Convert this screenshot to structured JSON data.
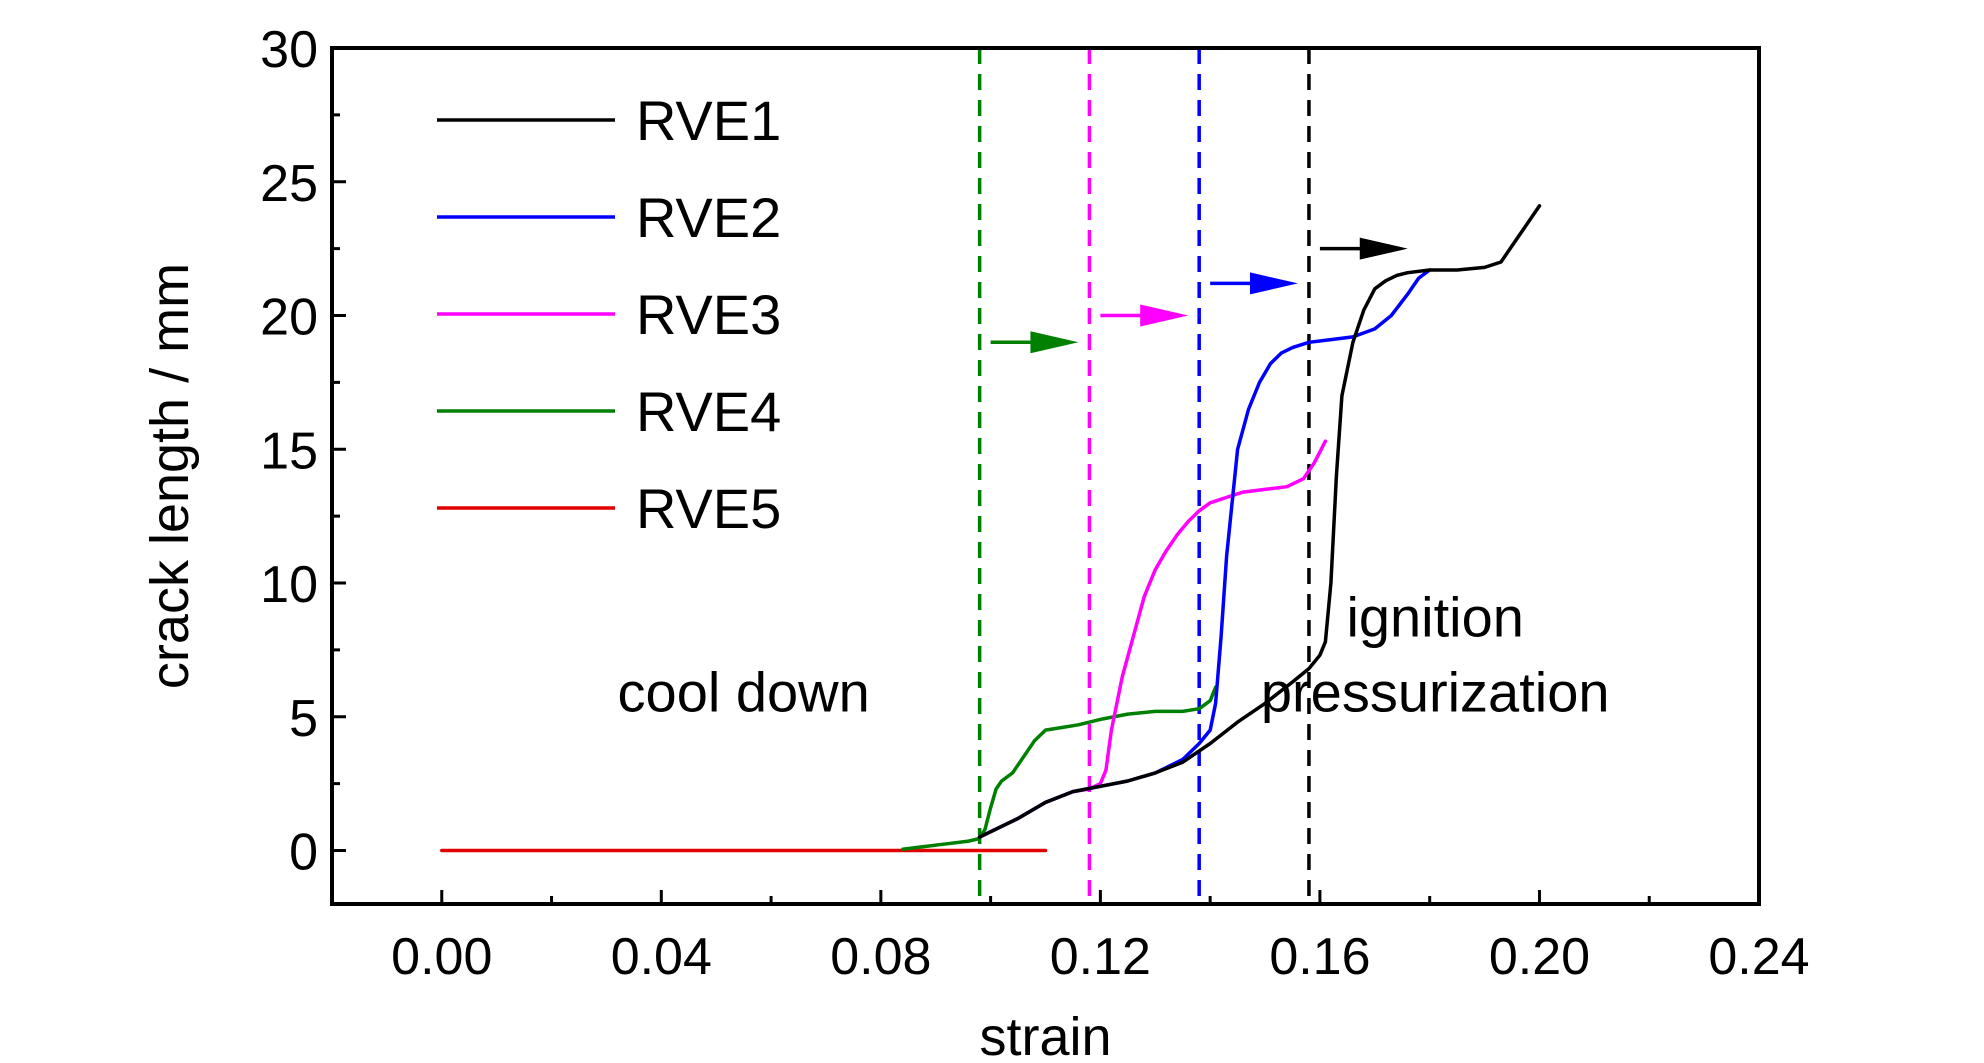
{
  "chart_data": {
    "type": "line",
    "title": "",
    "xlabel": "strain",
    "ylabel": "crack length / mm",
    "xlim": [
      -0.02,
      0.24
    ],
    "ylim": [
      -2,
      30
    ],
    "xticks": [
      0.0,
      0.04,
      0.08,
      0.12,
      0.16,
      0.2,
      0.24
    ],
    "xtick_labels": [
      "0.00",
      "0.04",
      "0.08",
      "0.12",
      "0.16",
      "0.20",
      "0.24"
    ],
    "yticks": [
      0,
      5,
      10,
      15,
      20,
      25,
      30
    ],
    "ytick_labels": [
      "0",
      "5",
      "10",
      "15",
      "20",
      "25",
      "30"
    ],
    "grid": false,
    "legend_position": "top-left",
    "series": [
      {
        "name": "RVE1",
        "color": "#000000",
        "x": [
          0.098,
          0.105,
          0.11,
          0.115,
          0.12,
          0.125,
          0.13,
          0.135,
          0.14,
          0.145,
          0.15,
          0.155,
          0.158,
          0.16,
          0.161,
          0.162,
          0.163,
          0.164,
          0.166,
          0.168,
          0.17,
          0.172,
          0.174,
          0.176,
          0.18,
          0.185,
          0.19,
          0.193,
          0.195,
          0.197,
          0.2
        ],
        "y": [
          0.5,
          1.2,
          1.8,
          2.2,
          2.4,
          2.6,
          2.9,
          3.3,
          4.0,
          4.8,
          5.5,
          6.3,
          6.8,
          7.3,
          7.8,
          10.0,
          14.0,
          17.0,
          19.0,
          20.2,
          21.0,
          21.3,
          21.5,
          21.6,
          21.7,
          21.7,
          21.8,
          22.0,
          22.6,
          23.2,
          24.1
        ]
      },
      {
        "name": "RVE2",
        "color": "#0000ff",
        "x": [
          0.098,
          0.105,
          0.11,
          0.115,
          0.12,
          0.125,
          0.13,
          0.135,
          0.138,
          0.14,
          0.141,
          0.142,
          0.143,
          0.144,
          0.145,
          0.147,
          0.149,
          0.151,
          0.153,
          0.155,
          0.158,
          0.162,
          0.166,
          0.17,
          0.173,
          0.176,
          0.178,
          0.18
        ],
        "y": [
          0.5,
          1.2,
          1.8,
          2.2,
          2.4,
          2.6,
          2.9,
          3.4,
          4.0,
          4.5,
          5.5,
          8.0,
          11.0,
          13.0,
          15.0,
          16.5,
          17.5,
          18.2,
          18.6,
          18.8,
          19.0,
          19.1,
          19.2,
          19.5,
          20.0,
          20.8,
          21.4,
          21.7
        ]
      },
      {
        "name": "RVE3",
        "color": "#ff00ff",
        "x": [
          0.098,
          0.105,
          0.11,
          0.115,
          0.118,
          0.12,
          0.121,
          0.122,
          0.124,
          0.126,
          0.128,
          0.13,
          0.132,
          0.134,
          0.136,
          0.138,
          0.14,
          0.143,
          0.146,
          0.15,
          0.154,
          0.157,
          0.159,
          0.161
        ],
        "y": [
          0.5,
          1.2,
          1.8,
          2.2,
          2.3,
          2.5,
          3.0,
          4.5,
          6.5,
          8.0,
          9.5,
          10.5,
          11.2,
          11.8,
          12.3,
          12.7,
          13.0,
          13.2,
          13.4,
          13.5,
          13.6,
          13.9,
          14.5,
          15.3
        ]
      },
      {
        "name": "RVE4",
        "color": "#008000",
        "x": [
          0.084,
          0.088,
          0.092,
          0.096,
          0.098,
          0.099,
          0.1,
          0.101,
          0.102,
          0.104,
          0.106,
          0.108,
          0.11,
          0.113,
          0.116,
          0.12,
          0.125,
          0.13,
          0.135,
          0.138,
          0.14,
          0.141
        ],
        "y": [
          0.05,
          0.15,
          0.25,
          0.35,
          0.45,
          0.8,
          1.6,
          2.3,
          2.6,
          2.9,
          3.5,
          4.1,
          4.5,
          4.6,
          4.7,
          4.9,
          5.1,
          5.2,
          5.2,
          5.3,
          5.6,
          6.1
        ]
      },
      {
        "name": "RVE5",
        "color": "#e00000",
        "x": [
          0.0,
          0.11
        ],
        "y": [
          0.0,
          0.0
        ]
      }
    ],
    "reference_lines": [
      {
        "x": 0.098,
        "color": "#008000",
        "style": "dashed"
      },
      {
        "x": 0.118,
        "color": "#ff00ff",
        "style": "dashed"
      },
      {
        "x": 0.138,
        "color": "#0000ff",
        "style": "dashed"
      },
      {
        "x": 0.158,
        "color": "#000000",
        "style": "dashed"
      }
    ],
    "arrows": [
      {
        "x_start": 0.1,
        "x_end": 0.116,
        "y": 19.0,
        "color": "#008000"
      },
      {
        "x_start": 0.12,
        "x_end": 0.136,
        "y": 20.0,
        "color": "#ff00ff"
      },
      {
        "x_start": 0.14,
        "x_end": 0.156,
        "y": 21.2,
        "color": "#0000ff"
      },
      {
        "x_start": 0.16,
        "x_end": 0.176,
        "y": 22.5,
        "color": "#000000"
      }
    ],
    "annotations": [
      {
        "text": "cool down",
        "x": 0.055,
        "y": 5.2
      },
      {
        "text": "ignition",
        "x": 0.181,
        "y": 8.0
      },
      {
        "text": "pressurization",
        "x": 0.181,
        "y": 5.2
      }
    ]
  }
}
